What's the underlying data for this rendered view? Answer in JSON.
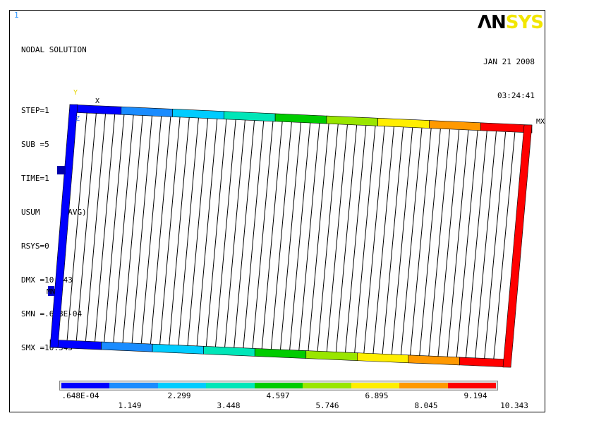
{
  "window": {
    "number": "1"
  },
  "info": {
    "title": "NODAL SOLUTION",
    "lines": [
      "STEP=1",
      "SUB =5",
      "TIME=1",
      "USUM     (AVG)",
      "RSYS=0",
      "DMX =10.343",
      "SMN =.648E-04",
      "SMX =10.343"
    ]
  },
  "logo": {
    "an": "ΛN",
    "sys": "SYS"
  },
  "date": "JAN 21 2008",
  "time": "03:24:41",
  "triad": {
    "y": "Y",
    "z": "Z",
    "x": "X"
  },
  "markers": {
    "max": "MX",
    "min": "MN"
  },
  "legend": {
    "colors": [
      "#0000ff",
      "#1a8cff",
      "#00ccff",
      "#00e6b8",
      "#00cc00",
      "#99e600",
      "#ffee00",
      "#ff9900",
      "#ff0000"
    ],
    "labels_top": [
      ".648E-04",
      "2.299",
      "4.597",
      "6.895",
      "9.194"
    ],
    "labels_bottom": [
      "1.149",
      "3.448",
      "5.746",
      "8.045",
      "10.343"
    ]
  },
  "model": {
    "field_min": 6.48e-05,
    "field_max": 10.343,
    "vertical_members": 48
  }
}
